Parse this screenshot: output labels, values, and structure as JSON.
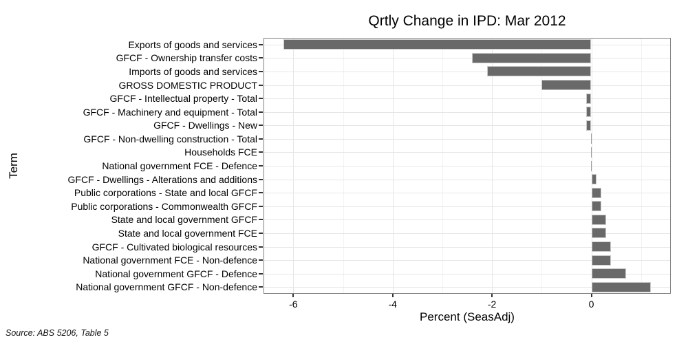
{
  "source_note": "Source: ABS 5206, Table 5",
  "chart_data": {
    "type": "bar",
    "orientation": "horizontal",
    "title": "Qrtly Change in IPD: Mar 2012",
    "xlabel": "Percent (SeasAdj)",
    "ylabel": "Term",
    "categories": [
      "Exports of goods and services",
      "GFCF - Ownership transfer costs",
      "Imports of goods and services",
      "GROSS DOMESTIC PRODUCT",
      "GFCF - Intellectual property - Total",
      "GFCF - Machinery and equipment - Total",
      "GFCF - Dwellings - New",
      "GFCF - Non-dwelling construction - Total",
      "Households FCE",
      "National government FCE - Defence",
      "GFCF - Dwellings - Alterations and additions",
      "Public corporations - State and local GFCF",
      "Public corporations - Commonwealth GFCF",
      "State and local government GFCF",
      "State and local government FCE",
      "GFCF - Cultivated biological resources",
      "National government FCE - Non-defence",
      "National government GFCF - Defence",
      "National government GFCF - Non-defence"
    ],
    "values": [
      -6.2,
      -2.4,
      -2.1,
      -1.0,
      -0.1,
      -0.1,
      -0.1,
      0.0,
      0.0,
      0.0,
      0.1,
      0.2,
      0.2,
      0.3,
      0.3,
      0.4,
      0.4,
      0.7,
      1.2
    ],
    "xlim": [
      -6.6,
      1.6
    ],
    "x_major_ticks": [
      -6,
      -4,
      -2,
      0
    ],
    "x_minor_gridlines": [
      -5,
      -3,
      -1,
      1
    ],
    "grid": "on",
    "legend_position": "none",
    "colors": {
      "bar_fill": "#696969",
      "bar_border": "#c9c9c9",
      "zero_sliver": "#9a9a9a",
      "grid_major": "#e6e6e6",
      "grid_minor": "#f3f3f3",
      "panel_border": "#7d7d7d",
      "tick": "#333333",
      "text": "#000000"
    }
  }
}
